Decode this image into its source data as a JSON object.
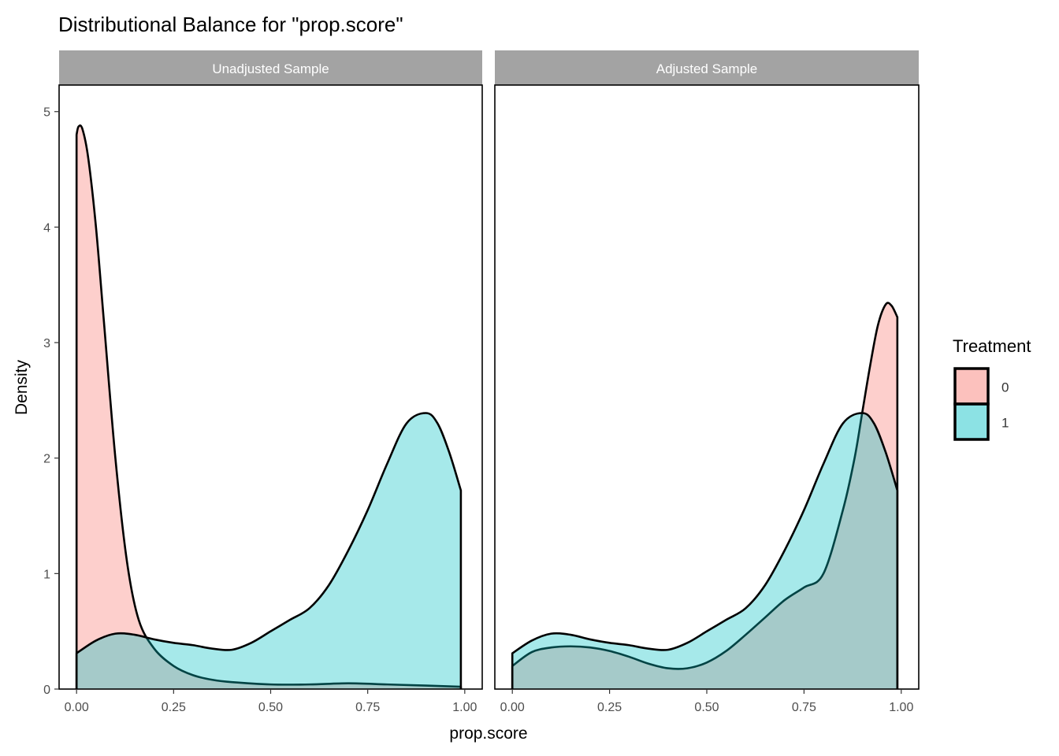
{
  "chart_data": {
    "type": "area",
    "title": "Distributional Balance for \"prop.score\"",
    "xlabel": "prop.score",
    "ylabel": "Density",
    "xlim": [
      0,
      1
    ],
    "ylim": [
      0,
      5
    ],
    "x_ticks": [
      0,
      0.25,
      0.5,
      0.75,
      1
    ],
    "x_tick_labels": [
      "0.00",
      "0.25",
      "0.50",
      "0.75",
      "1.00"
    ],
    "y_ticks": [
      0,
      1,
      2,
      3,
      4,
      5
    ],
    "y_tick_labels": [
      "0",
      "1",
      "2",
      "3",
      "4",
      "5"
    ],
    "grid": false,
    "legend": {
      "title": "Treatment",
      "placement": "right",
      "entries": [
        {
          "label": "0",
          "color": "#F8766D"
        },
        {
          "label": "1",
          "color": "#00BFC4"
        }
      ]
    },
    "panels": [
      {
        "label": "Unadjusted Sample",
        "series": [
          {
            "name": "0",
            "color": "#F8766D",
            "x": [
              0.0,
              0.005,
              0.015,
              0.03,
              0.05,
              0.07,
              0.1,
              0.13,
              0.16,
              0.2,
              0.25,
              0.3,
              0.35,
              0.4,
              0.5,
              0.6,
              0.7,
              0.8,
              0.9,
              0.99
            ],
            "y": [
              4.8,
              4.87,
              4.85,
              4.6,
              4.0,
              3.2,
              2.0,
              1.1,
              0.6,
              0.35,
              0.2,
              0.12,
              0.08,
              0.06,
              0.04,
              0.04,
              0.05,
              0.04,
              0.03,
              0.02
            ]
          },
          {
            "name": "1",
            "color": "#00BFC4",
            "x": [
              0.0,
              0.05,
              0.1,
              0.15,
              0.2,
              0.25,
              0.3,
              0.35,
              0.4,
              0.45,
              0.5,
              0.55,
              0.6,
              0.65,
              0.7,
              0.75,
              0.8,
              0.85,
              0.9,
              0.93,
              0.96,
              0.99
            ],
            "y": [
              0.31,
              0.42,
              0.48,
              0.47,
              0.43,
              0.4,
              0.38,
              0.35,
              0.34,
              0.4,
              0.5,
              0.6,
              0.7,
              0.9,
              1.2,
              1.55,
              1.95,
              2.3,
              2.39,
              2.3,
              2.05,
              1.72
            ]
          }
        ]
      },
      {
        "label": "Adjusted Sample",
        "series": [
          {
            "name": "0",
            "color": "#F8766D",
            "x": [
              0.0,
              0.05,
              0.1,
              0.15,
              0.2,
              0.25,
              0.3,
              0.35,
              0.4,
              0.45,
              0.5,
              0.55,
              0.6,
              0.65,
              0.7,
              0.75,
              0.8,
              0.85,
              0.88,
              0.9,
              0.92,
              0.94,
              0.96,
              0.975,
              0.99
            ],
            "y": [
              0.2,
              0.32,
              0.36,
              0.37,
              0.36,
              0.33,
              0.28,
              0.22,
              0.18,
              0.18,
              0.23,
              0.33,
              0.47,
              0.62,
              0.77,
              0.88,
              1.0,
              1.55,
              2.0,
              2.4,
              2.8,
              3.15,
              3.33,
              3.32,
              3.22
            ]
          },
          {
            "name": "1",
            "color": "#00BFC4",
            "x": [
              0.0,
              0.05,
              0.1,
              0.15,
              0.2,
              0.25,
              0.3,
              0.35,
              0.4,
              0.45,
              0.5,
              0.55,
              0.6,
              0.65,
              0.7,
              0.75,
              0.8,
              0.85,
              0.9,
              0.93,
              0.96,
              0.99
            ],
            "y": [
              0.31,
              0.42,
              0.48,
              0.47,
              0.43,
              0.4,
              0.38,
              0.35,
              0.34,
              0.4,
              0.5,
              0.6,
              0.7,
              0.9,
              1.2,
              1.55,
              1.95,
              2.3,
              2.39,
              2.3,
              2.05,
              1.72
            ]
          }
        ]
      }
    ]
  }
}
